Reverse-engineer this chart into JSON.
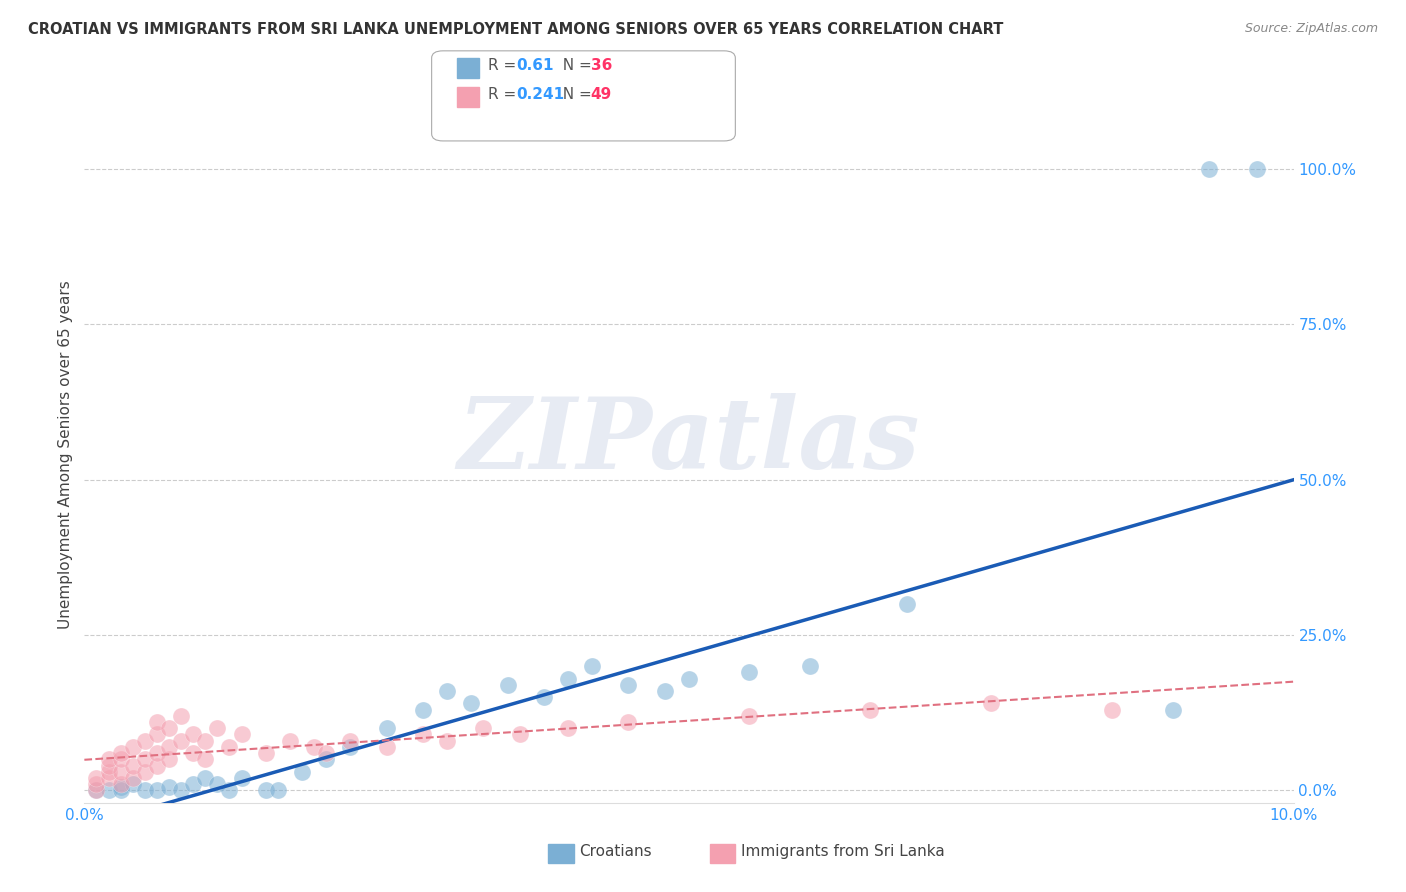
{
  "title": "CROATIAN VS IMMIGRANTS FROM SRI LANKA UNEMPLOYMENT AMONG SENIORS OVER 65 YEARS CORRELATION CHART",
  "source": "Source: ZipAtlas.com",
  "ylabel": "Unemployment Among Seniors over 65 years",
  "xlim": [
    0.0,
    0.1
  ],
  "ylim": [
    -0.02,
    1.1
  ],
  "yticks": [
    0.0,
    0.25,
    0.5,
    0.75,
    1.0
  ],
  "ytick_labels": [
    "0.0%",
    "25.0%",
    "50.0%",
    "75.0%",
    "100.0%"
  ],
  "xticks": [
    0.0,
    0.1
  ],
  "xtick_labels": [
    "0.0%",
    "10.0%"
  ],
  "croatians_color": "#7BAFD4",
  "srilanka_color": "#F4A0B0",
  "croatians_line_color": "#1A5BB5",
  "srilanka_line_color": "#E07080",
  "R_color": "#3399FF",
  "N_color": "#FF3366",
  "watermark": "ZIPatlas",
  "background_color": "#FFFFFF",
  "grid_color": "#CCCCCC",
  "croatians_R": 0.61,
  "croatians_N": 36,
  "srilanka_R": 0.241,
  "srilanka_N": 49,
  "croatians_x": [
    0.001,
    0.002,
    0.003,
    0.003,
    0.004,
    0.005,
    0.006,
    0.007,
    0.008,
    0.009,
    0.01,
    0.011,
    0.012,
    0.013,
    0.015,
    0.016,
    0.018,
    0.02,
    0.022,
    0.025,
    0.028,
    0.03,
    0.032,
    0.035,
    0.038,
    0.04,
    0.042,
    0.045,
    0.048,
    0.05,
    0.055,
    0.06,
    0.068,
    0.09,
    0.093,
    0.097
  ],
  "croatians_y": [
    0.0,
    0.0,
    0.005,
    0.0,
    0.01,
    0.0,
    0.0,
    0.005,
    0.0,
    0.01,
    0.02,
    0.01,
    0.0,
    0.02,
    0.0,
    0.0,
    0.03,
    0.05,
    0.07,
    0.1,
    0.13,
    0.16,
    0.14,
    0.17,
    0.15,
    0.18,
    0.2,
    0.17,
    0.16,
    0.18,
    0.19,
    0.2,
    0.3,
    0.13,
    1.0,
    1.0
  ],
  "srilanka_x": [
    0.001,
    0.001,
    0.001,
    0.002,
    0.002,
    0.002,
    0.002,
    0.003,
    0.003,
    0.003,
    0.003,
    0.004,
    0.004,
    0.004,
    0.005,
    0.005,
    0.005,
    0.006,
    0.006,
    0.006,
    0.006,
    0.007,
    0.007,
    0.007,
    0.008,
    0.008,
    0.009,
    0.009,
    0.01,
    0.01,
    0.011,
    0.012,
    0.013,
    0.015,
    0.017,
    0.019,
    0.02,
    0.022,
    0.025,
    0.028,
    0.03,
    0.033,
    0.036,
    0.04,
    0.045,
    0.055,
    0.065,
    0.075,
    0.085
  ],
  "srilanka_y": [
    0.0,
    0.01,
    0.02,
    0.02,
    0.03,
    0.04,
    0.05,
    0.01,
    0.03,
    0.05,
    0.06,
    0.02,
    0.04,
    0.07,
    0.03,
    0.05,
    0.08,
    0.04,
    0.06,
    0.09,
    0.11,
    0.05,
    0.07,
    0.1,
    0.08,
    0.12,
    0.06,
    0.09,
    0.05,
    0.08,
    0.1,
    0.07,
    0.09,
    0.06,
    0.08,
    0.07,
    0.06,
    0.08,
    0.07,
    0.09,
    0.08,
    0.1,
    0.09,
    0.1,
    0.11,
    0.12,
    0.13,
    0.14,
    0.13
  ]
}
